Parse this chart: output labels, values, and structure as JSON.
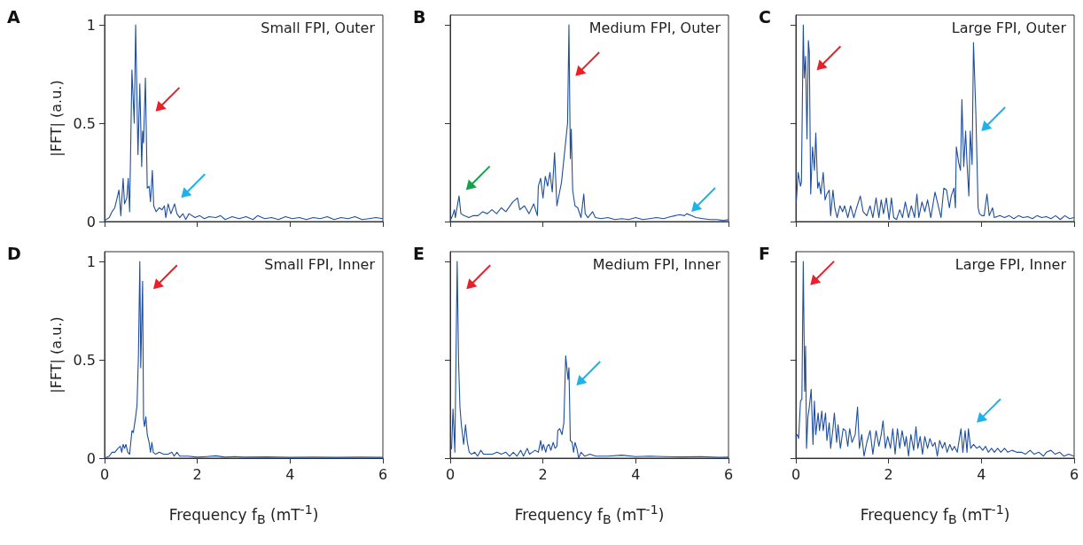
{
  "chart_data": [
    {
      "type": "line",
      "title": "Small FPI, Outer",
      "annotations": [
        "A"
      ],
      "ylabel": "|FFT| (a.u.)",
      "xlim": [
        0,
        6
      ],
      "xticks": [
        0,
        2,
        4,
        6
      ],
      "ylim": [
        0,
        1.05
      ],
      "yticks": [
        0,
        0.5,
        1
      ],
      "tick_labels": "y",
      "grid": false,
      "marker": "none",
      "line_style": "solid",
      "color": "#1f4e9c",
      "x": [
        0,
        0.1,
        0.16,
        0.22,
        0.27,
        0.31,
        0.35,
        0.4,
        0.43,
        0.48,
        0.51,
        0.54,
        0.59,
        0.64,
        0.67,
        0.72,
        0.76,
        0.8,
        0.82,
        0.84,
        0.88,
        0.92,
        0.96,
        0.99,
        1.03,
        1.06,
        1.11,
        1.18,
        1.24,
        1.29,
        1.32,
        1.37,
        1.43,
        1.51,
        1.56,
        1.62,
        1.69,
        1.75,
        1.82,
        1.95,
        2.05,
        2.15,
        2.25,
        2.4,
        2.5,
        2.6,
        2.75,
        2.9,
        3.05,
        3.2,
        3.3,
        3.45,
        3.6,
        3.75,
        3.9,
        4.05,
        4.2,
        4.35,
        4.5,
        4.65,
        4.8,
        4.95,
        5.1,
        5.25,
        5.4,
        5.55,
        5.7,
        5.85,
        6
      ],
      "values": [
        0.005,
        0.02,
        0.05,
        0.07,
        0.12,
        0.16,
        0.03,
        0.22,
        0.09,
        0.12,
        0.22,
        0.05,
        0.77,
        0.5,
        1.0,
        0.34,
        0.7,
        0.28,
        0.46,
        0.4,
        0.73,
        0.17,
        0.18,
        0.1,
        0.26,
        0.08,
        0.05,
        0.07,
        0.06,
        0.08,
        0.02,
        0.09,
        0.04,
        0.09,
        0.04,
        0.02,
        0.04,
        0.01,
        0.04,
        0.02,
        0.03,
        0.015,
        0.025,
        0.02,
        0.03,
        0.01,
        0.025,
        0.015,
        0.025,
        0.01,
        0.03,
        0.015,
        0.02,
        0.01,
        0.025,
        0.015,
        0.02,
        0.01,
        0.02,
        0.015,
        0.025,
        0.01,
        0.02,
        0.015,
        0.025,
        0.01,
        0.015,
        0.02,
        0.015
      ]
    },
    {
      "type": "line",
      "title": "Medium FPI, Outer",
      "annotations": [
        "B"
      ],
      "xlim": [
        0,
        6
      ],
      "xticks": [
        0,
        2,
        4,
        6
      ],
      "ylim": [
        0,
        1.05
      ],
      "yticks": [
        0,
        0.5,
        1
      ],
      "tick_labels": false,
      "grid": false,
      "marker": "none",
      "line_style": "solid",
      "color": "#1f4e9c",
      "x": [
        0,
        0.05,
        0.09,
        0.11,
        0.19,
        0.23,
        0.3,
        0.4,
        0.5,
        0.6,
        0.7,
        0.8,
        0.9,
        1.0,
        1.1,
        1.2,
        1.35,
        1.45,
        1.5,
        1.6,
        1.7,
        1.8,
        1.88,
        1.9,
        1.95,
        2.0,
        2.05,
        2.1,
        2.15,
        2.2,
        2.25,
        2.3,
        2.4,
        2.53,
        2.56,
        2.59,
        2.61,
        2.64,
        2.69,
        2.75,
        2.82,
        2.88,
        2.91,
        2.97,
        3.07,
        3.13,
        3.25,
        3.4,
        3.55,
        3.7,
        3.85,
        4.0,
        4.15,
        4.3,
        4.45,
        4.6,
        4.75,
        4.85,
        4.95,
        5.05,
        5.1,
        5.2,
        5.3,
        5.45,
        5.6,
        5.75,
        5.9,
        6
      ],
      "values": [
        0.005,
        0.03,
        0.06,
        0.02,
        0.13,
        0.04,
        0.03,
        0.02,
        0.03,
        0.03,
        0.05,
        0.04,
        0.06,
        0.04,
        0.07,
        0.05,
        0.1,
        0.12,
        0.06,
        0.08,
        0.04,
        0.09,
        0.03,
        0.18,
        0.22,
        0.12,
        0.23,
        0.18,
        0.25,
        0.15,
        0.35,
        0.08,
        0.2,
        0.5,
        1.0,
        0.32,
        0.47,
        0.16,
        0.08,
        0.07,
        0.02,
        0.14,
        0.04,
        0.02,
        0.05,
        0.02,
        0.015,
        0.02,
        0.01,
        0.015,
        0.01,
        0.02,
        0.01,
        0.015,
        0.02,
        0.015,
        0.025,
        0.03,
        0.035,
        0.03,
        0.04,
        0.03,
        0.02,
        0.015,
        0.01,
        0.01,
        0.005,
        0.01
      ]
    },
    {
      "type": "line",
      "title": "Large FPI, Outer",
      "annotations": [
        "C"
      ],
      "xlim": [
        0,
        6
      ],
      "xticks": [
        0,
        2,
        4,
        6
      ],
      "ylim": [
        0,
        1.05
      ],
      "yticks": [
        0,
        0.5,
        1
      ],
      "tick_labels": false,
      "grid": false,
      "marker": "none",
      "line_style": "solid",
      "color": "#1f4e9c",
      "x": [
        0.01,
        0.05,
        0.1,
        0.12,
        0.16,
        0.18,
        0.21,
        0.24,
        0.27,
        0.29,
        0.32,
        0.36,
        0.4,
        0.43,
        0.47,
        0.5,
        0.54,
        0.59,
        0.63,
        0.67,
        0.72,
        0.75,
        0.8,
        0.84,
        0.89,
        0.95,
        1.01,
        1.05,
        1.12,
        1.18,
        1.25,
        1.31,
        1.39,
        1.45,
        1.53,
        1.6,
        1.66,
        1.73,
        1.79,
        1.84,
        1.89,
        1.95,
        2.01,
        2.06,
        2.11,
        2.17,
        2.24,
        2.3,
        2.36,
        2.43,
        2.49,
        2.56,
        2.61,
        2.65,
        2.72,
        2.78,
        2.84,
        2.91,
        3.0,
        3.07,
        3.13,
        3.19,
        3.25,
        3.31,
        3.35,
        3.41,
        3.44,
        3.46,
        3.51,
        3.55,
        3.58,
        3.62,
        3.66,
        3.69,
        3.73,
        3.76,
        3.8,
        3.83,
        3.88,
        3.93,
        3.96,
        4.01,
        4.06,
        4.12,
        4.17,
        4.24,
        4.28,
        4.4,
        4.5,
        4.6,
        4.7,
        4.8,
        4.9,
        5.0,
        5.1,
        5.2,
        5.3,
        5.4,
        5.5,
        5.6,
        5.7,
        5.8,
        5.9,
        6
      ],
      "values": [
        0.1,
        0.25,
        0.18,
        0.2,
        1.0,
        0.73,
        0.84,
        0.42,
        0.92,
        0.86,
        0.14,
        0.38,
        0.26,
        0.45,
        0.17,
        0.2,
        0.14,
        0.25,
        0.11,
        0.14,
        0.16,
        0.03,
        0.16,
        0.07,
        0.02,
        0.08,
        0.05,
        0.08,
        0.02,
        0.08,
        0.02,
        0.07,
        0.13,
        0.05,
        0.03,
        0.08,
        0.02,
        0.12,
        0.02,
        0.11,
        0.04,
        0.12,
        0.01,
        0.12,
        0.02,
        0.01,
        0.06,
        0.02,
        0.1,
        0.02,
        0.08,
        0.02,
        0.14,
        0.02,
        0.1,
        0.05,
        0.11,
        0.02,
        0.15,
        0.08,
        0.02,
        0.17,
        0.16,
        0.07,
        0.13,
        0.17,
        0.07,
        0.38,
        0.3,
        0.26,
        0.62,
        0.28,
        0.46,
        0.3,
        0.13,
        0.46,
        0.29,
        0.91,
        0.56,
        0.07,
        0.04,
        0.03,
        0.03,
        0.14,
        0.03,
        0.07,
        0.02,
        0.03,
        0.02,
        0.03,
        0.015,
        0.03,
        0.02,
        0.025,
        0.015,
        0.03,
        0.02,
        0.025,
        0.015,
        0.03,
        0.01,
        0.03,
        0.015,
        0.02
      ]
    },
    {
      "type": "line",
      "title": "Small FPI, Inner",
      "annotations": [
        "D"
      ],
      "ylabel": "|FFT| (a.u.)",
      "xlabel": "Frequency f$_{B}$ (mT$^{-1}$)",
      "xlim": [
        0,
        6
      ],
      "xticks": [
        0,
        2,
        4,
        6
      ],
      "ylim": [
        0,
        1.05
      ],
      "yticks": [
        0,
        0.5,
        1
      ],
      "grid": false,
      "marker": "none",
      "line_style": "solid",
      "color": "#1f4e9c",
      "x": [
        0,
        0.1,
        0.16,
        0.22,
        0.29,
        0.34,
        0.37,
        0.4,
        0.43,
        0.46,
        0.5,
        0.54,
        0.59,
        0.62,
        0.67,
        0.7,
        0.73,
        0.76,
        0.78,
        0.82,
        0.84,
        0.86,
        0.89,
        0.92,
        0.96,
        0.99,
        1.02,
        1.05,
        1.1,
        1.18,
        1.27,
        1.37,
        1.45,
        1.5,
        1.56,
        1.62,
        1.8,
        2.0,
        2.2,
        2.4,
        2.6,
        2.8,
        3.0,
        3.5,
        4.0,
        4.5,
        5.0,
        5.5,
        6
      ],
      "values": [
        0.0,
        0.01,
        0.03,
        0.03,
        0.05,
        0.06,
        0.03,
        0.07,
        0.05,
        0.07,
        0.03,
        0.02,
        0.14,
        0.13,
        0.21,
        0.27,
        0.52,
        1.0,
        0.46,
        0.9,
        0.2,
        0.16,
        0.21,
        0.12,
        0.08,
        0.03,
        0.08,
        0.03,
        0.02,
        0.03,
        0.02,
        0.02,
        0.03,
        0.01,
        0.03,
        0.01,
        0.01,
        0.005,
        0.008,
        0.012,
        0.005,
        0.008,
        0.005,
        0.006,
        0.004,
        0.005,
        0.004,
        0.005,
        0.004
      ]
    },
    {
      "type": "line",
      "title": "Medium FPI, Inner",
      "annotations": [
        "E"
      ],
      "xlabel": "Frequency f$_{B}$ (mT$^{-1}$)",
      "xlim": [
        0,
        6
      ],
      "xticks": [
        0,
        2,
        4,
        6
      ],
      "ylim": [
        0,
        1.05
      ],
      "yticks": [
        0,
        0.5,
        1
      ],
      "tick_labels": "x",
      "grid": false,
      "marker": "none",
      "line_style": "solid",
      "color": "#1f4e9c",
      "x": [
        0,
        0.03,
        0.06,
        0.1,
        0.15,
        0.18,
        0.21,
        0.24,
        0.29,
        0.33,
        0.37,
        0.41,
        0.46,
        0.53,
        0.59,
        0.66,
        0.72,
        0.82,
        0.91,
        1.01,
        1.1,
        1.2,
        1.28,
        1.36,
        1.44,
        1.52,
        1.58,
        1.66,
        1.71,
        1.77,
        1.83,
        1.9,
        1.95,
        1.98,
        2.01,
        2.06,
        2.09,
        2.13,
        2.17,
        2.22,
        2.26,
        2.3,
        2.32,
        2.36,
        2.41,
        2.45,
        2.49,
        2.54,
        2.56,
        2.59,
        2.63,
        2.66,
        2.69,
        2.73,
        2.77,
        2.82,
        2.9,
        3.01,
        3.14,
        3.4,
        3.7,
        4.0,
        4.3,
        4.6,
        5.0,
        5.4,
        5.8,
        6
      ],
      "values": [
        0.04,
        0.05,
        0.25,
        0.03,
        1.0,
        0.49,
        0.26,
        0.17,
        0.07,
        0.17,
        0.08,
        0.03,
        0.02,
        0.03,
        0.01,
        0.04,
        0.02,
        0.02,
        0.02,
        0.03,
        0.02,
        0.03,
        0.01,
        0.03,
        0.01,
        0.04,
        0.01,
        0.05,
        0.02,
        0.03,
        0.04,
        0.03,
        0.09,
        0.04,
        0.07,
        0.03,
        0.06,
        0.07,
        0.04,
        0.08,
        0.05,
        0.06,
        0.14,
        0.15,
        0.12,
        0.18,
        0.52,
        0.4,
        0.46,
        0.09,
        0.08,
        0.03,
        0.08,
        0.05,
        0.0,
        0.03,
        0.01,
        0.02,
        0.01,
        0.01,
        0.015,
        0.008,
        0.01,
        0.008,
        0.006,
        0.008,
        0.004,
        0.005
      ]
    },
    {
      "type": "line",
      "title": "Large FPI, Inner",
      "annotations": [
        "F"
      ],
      "xlabel": "Frequency f$_{B}$ (mT$^{-1}$)",
      "xlim": [
        0,
        6
      ],
      "xticks": [
        0,
        2,
        4,
        6
      ],
      "ylim": [
        0,
        1.05
      ],
      "yticks": [
        0,
        0.5,
        1
      ],
      "tick_labels": "x",
      "grid": false,
      "marker": "none",
      "line_style": "solid",
      "color": "#1f4e9c",
      "x": [
        0,
        0.03,
        0.06,
        0.1,
        0.13,
        0.16,
        0.19,
        0.21,
        0.23,
        0.26,
        0.29,
        0.33,
        0.37,
        0.4,
        0.43,
        0.48,
        0.51,
        0.56,
        0.59,
        0.64,
        0.67,
        0.72,
        0.75,
        0.8,
        0.83,
        0.88,
        0.91,
        0.96,
        1.02,
        1.07,
        1.12,
        1.16,
        1.21,
        1.28,
        1.33,
        1.37,
        1.42,
        1.47,
        1.53,
        1.6,
        1.66,
        1.73,
        1.79,
        1.84,
        1.88,
        1.93,
        1.98,
        2.04,
        2.09,
        2.14,
        2.19,
        2.24,
        2.29,
        2.35,
        2.38,
        2.43,
        2.48,
        2.54,
        2.59,
        2.63,
        2.68,
        2.73,
        2.78,
        2.84,
        2.89,
        2.95,
        3.0,
        3.05,
        3.1,
        3.16,
        3.21,
        3.26,
        3.32,
        3.37,
        3.42,
        3.48,
        3.56,
        3.6,
        3.65,
        3.69,
        3.72,
        3.77,
        3.83,
        3.9,
        3.96,
        4.03,
        4.09,
        4.15,
        4.22,
        4.28,
        4.35,
        4.42,
        4.5,
        4.57,
        4.66,
        4.76,
        4.86,
        4.95,
        5.05,
        5.14,
        5.24,
        5.34,
        5.4,
        5.5,
        5.59,
        5.69,
        5.78,
        5.88,
        6
      ],
      "values": [
        0.11,
        0.12,
        0.1,
        0.29,
        0.3,
        1.0,
        0.34,
        0.57,
        0.05,
        0.21,
        0.26,
        0.35,
        0.07,
        0.29,
        0.12,
        0.23,
        0.14,
        0.24,
        0.14,
        0.23,
        0.09,
        0.18,
        0.05,
        0.15,
        0.23,
        0.08,
        0.17,
        0.05,
        0.15,
        0.14,
        0.06,
        0.15,
        0.08,
        0.12,
        0.26,
        0.05,
        0.12,
        0.01,
        0.08,
        0.14,
        0.02,
        0.14,
        0.06,
        0.12,
        0.19,
        0.05,
        0.11,
        0.05,
        0.15,
        0.02,
        0.15,
        0.05,
        0.14,
        0.06,
        0.11,
        0.01,
        0.12,
        0.04,
        0.16,
        0.05,
        0.11,
        0.02,
        0.11,
        0.05,
        0.1,
        0.06,
        0.08,
        0.01,
        0.09,
        0.05,
        0.08,
        0.03,
        0.07,
        0.04,
        0.06,
        0.03,
        0.15,
        0.03,
        0.14,
        0.03,
        0.15,
        0.05,
        0.07,
        0.05,
        0.06,
        0.04,
        0.06,
        0.03,
        0.05,
        0.03,
        0.05,
        0.03,
        0.05,
        0.03,
        0.04,
        0.03,
        0.03,
        0.02,
        0.04,
        0.02,
        0.03,
        0.01,
        0.03,
        0.04,
        0.02,
        0.03,
        0.01,
        0.02,
        0.01
      ]
    }
  ]
}
